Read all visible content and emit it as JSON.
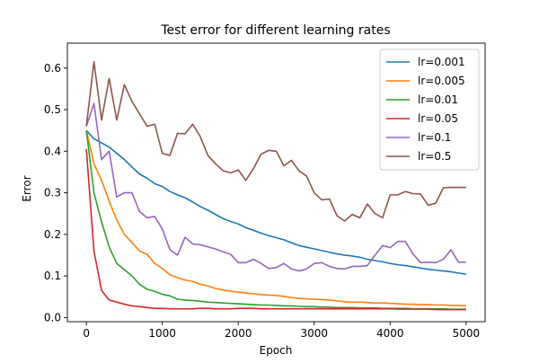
{
  "chart_data": {
    "type": "line",
    "title": "Test error for different learning rates",
    "xlabel": "Epoch",
    "ylabel": "Error",
    "xlim": [
      -250,
      5250
    ],
    "ylim": [
      -0.01,
      0.66
    ],
    "xticks": [
      0,
      1000,
      2000,
      3000,
      4000,
      5000
    ],
    "yticks": [
      0.0,
      0.1,
      0.2,
      0.3,
      0.4,
      0.5,
      0.6
    ],
    "grid": false,
    "legend_position": "top-right",
    "x": [
      0,
      100,
      200,
      300,
      400,
      500,
      600,
      700,
      800,
      900,
      1000,
      1100,
      1200,
      1300,
      1400,
      1500,
      1600,
      1700,
      1800,
      1900,
      2000,
      2100,
      2200,
      2300,
      2400,
      2500,
      2600,
      2700,
      2800,
      2900,
      3000,
      3100,
      3200,
      3300,
      3400,
      3500,
      3600,
      3700,
      3800,
      3900,
      4000,
      4100,
      4200,
      4300,
      4400,
      4500,
      4600,
      4700,
      4800,
      4900,
      5000
    ],
    "series": [
      {
        "name": "lr=0.001",
        "color": "#1f77b4",
        "values": [
          0.45,
          0.43,
          0.42,
          0.41,
          0.395,
          0.38,
          0.362,
          0.345,
          0.335,
          0.322,
          0.315,
          0.303,
          0.295,
          0.288,
          0.278,
          0.267,
          0.258,
          0.248,
          0.238,
          0.231,
          0.225,
          0.216,
          0.21,
          0.203,
          0.197,
          0.192,
          0.187,
          0.18,
          0.173,
          0.169,
          0.165,
          0.161,
          0.157,
          0.153,
          0.15,
          0.148,
          0.145,
          0.14,
          0.137,
          0.134,
          0.13,
          0.127,
          0.125,
          0.122,
          0.119,
          0.116,
          0.114,
          0.112,
          0.11,
          0.107,
          0.104
        ]
      },
      {
        "name": "lr=0.005",
        "color": "#ff7f0e",
        "values": [
          0.45,
          0.37,
          0.33,
          0.28,
          0.235,
          0.2,
          0.18,
          0.16,
          0.152,
          0.13,
          0.118,
          0.103,
          0.096,
          0.09,
          0.087,
          0.08,
          0.076,
          0.07,
          0.066,
          0.063,
          0.061,
          0.059,
          0.057,
          0.055,
          0.054,
          0.053,
          0.051,
          0.048,
          0.046,
          0.045,
          0.044,
          0.043,
          0.042,
          0.04,
          0.038,
          0.037,
          0.037,
          0.036,
          0.035,
          0.035,
          0.034,
          0.033,
          0.032,
          0.032,
          0.031,
          0.031,
          0.03,
          0.03,
          0.029,
          0.029,
          0.028
        ]
      },
      {
        "name": "lr=0.01",
        "color": "#2ca02c",
        "values": [
          0.45,
          0.3,
          0.23,
          0.17,
          0.13,
          0.115,
          0.1,
          0.08,
          0.068,
          0.063,
          0.056,
          0.052,
          0.044,
          0.042,
          0.041,
          0.039,
          0.037,
          0.036,
          0.035,
          0.034,
          0.033,
          0.032,
          0.031,
          0.03,
          0.03,
          0.029,
          0.028,
          0.028,
          0.027,
          0.026,
          0.026,
          0.025,
          0.025,
          0.024,
          0.024,
          0.024,
          0.023,
          0.023,
          0.023,
          0.022,
          0.022,
          0.022,
          0.022,
          0.021,
          0.021,
          0.021,
          0.021,
          0.021,
          0.02,
          0.02,
          0.02
        ]
      },
      {
        "name": "lr=0.05",
        "color": "#d62728",
        "values": [
          0.405,
          0.16,
          0.065,
          0.042,
          0.037,
          0.032,
          0.028,
          0.026,
          0.024,
          0.022,
          0.022,
          0.021,
          0.021,
          0.021,
          0.021,
          0.022,
          0.022,
          0.021,
          0.021,
          0.021,
          0.022,
          0.022,
          0.022,
          0.021,
          0.021,
          0.021,
          0.021,
          0.021,
          0.021,
          0.021,
          0.021,
          0.021,
          0.021,
          0.021,
          0.021,
          0.021,
          0.021,
          0.021,
          0.021,
          0.021,
          0.021,
          0.02,
          0.02,
          0.02,
          0.02,
          0.02,
          0.019,
          0.019,
          0.019,
          0.019,
          0.019
        ]
      },
      {
        "name": "lr=0.1",
        "color": "#9467bd",
        "values": [
          0.46,
          0.515,
          0.38,
          0.4,
          0.29,
          0.3,
          0.3,
          0.255,
          0.24,
          0.243,
          0.213,
          0.163,
          0.15,
          0.193,
          0.177,
          0.175,
          0.17,
          0.165,
          0.158,
          0.152,
          0.132,
          0.132,
          0.14,
          0.13,
          0.118,
          0.12,
          0.13,
          0.117,
          0.112,
          0.117,
          0.13,
          0.132,
          0.123,
          0.118,
          0.117,
          0.123,
          0.123,
          0.125,
          0.15,
          0.173,
          0.168,
          0.183,
          0.183,
          0.153,
          0.132,
          0.133,
          0.132,
          0.14,
          0.163,
          0.133,
          0.133
        ]
      },
      {
        "name": "lr=0.5",
        "color": "#8c564b",
        "values": [
          0.46,
          0.615,
          0.475,
          0.575,
          0.475,
          0.56,
          0.52,
          0.49,
          0.46,
          0.465,
          0.395,
          0.39,
          0.443,
          0.442,
          0.465,
          0.435,
          0.39,
          0.37,
          0.353,
          0.348,
          0.355,
          0.33,
          0.358,
          0.393,
          0.402,
          0.4,
          0.365,
          0.378,
          0.353,
          0.34,
          0.3,
          0.283,
          0.285,
          0.245,
          0.232,
          0.248,
          0.24,
          0.273,
          0.25,
          0.24,
          0.295,
          0.295,
          0.303,
          0.298,
          0.297,
          0.27,
          0.275,
          0.312,
          0.313,
          0.313,
          0.313
        ]
      }
    ]
  }
}
